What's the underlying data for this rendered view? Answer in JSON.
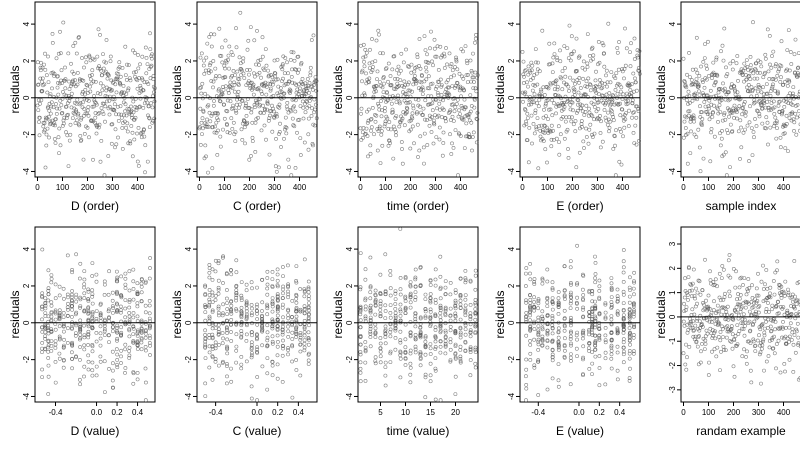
{
  "chart_data": [
    {
      "type": "scatter",
      "xlabel": "D (order)",
      "ylabel": "residuals",
      "xticks": [
        "0",
        "100",
        "200",
        "300",
        "400"
      ],
      "yticks": [
        "-4",
        "-2",
        "0",
        "2",
        "4"
      ],
      "xlim": [
        -10,
        470
      ],
      "ylim": [
        -4.3,
        5.2
      ],
      "n_points": 470,
      "y_spread": 1.5,
      "mode": "order",
      "seed": 11
    },
    {
      "type": "scatter",
      "xlabel": "C (order)",
      "ylabel": "residuals",
      "xticks": [
        "0",
        "100",
        "200",
        "300",
        "400"
      ],
      "yticks": [
        "-4",
        "-2",
        "0",
        "2",
        "4"
      ],
      "xlim": [
        -10,
        470
      ],
      "ylim": [
        -4.3,
        5.2
      ],
      "n_points": 470,
      "y_spread": 1.5,
      "mode": "order",
      "seed": 23
    },
    {
      "type": "scatter",
      "xlabel": "time (order)",
      "ylabel": "residuals",
      "xticks": [
        "0",
        "100",
        "200",
        "300",
        "400"
      ],
      "yticks": [
        "-4",
        "-2",
        "0",
        "2",
        "4"
      ],
      "xlim": [
        -10,
        470
      ],
      "ylim": [
        -4.3,
        5.2
      ],
      "n_points": 470,
      "y_spread": 1.5,
      "mode": "order",
      "seed": 37
    },
    {
      "type": "scatter",
      "xlabel": "E (order)",
      "ylabel": "residuals",
      "xticks": [
        "0",
        "100",
        "200",
        "300",
        "400"
      ],
      "yticks": [
        "-4",
        "-2",
        "0",
        "2",
        "4"
      ],
      "xlim": [
        -10,
        470
      ],
      "ylim": [
        -4.3,
        5.2
      ],
      "n_points": 470,
      "y_spread": 1.5,
      "mode": "order",
      "seed": 41
    },
    {
      "type": "scatter",
      "xlabel": "sample index",
      "ylabel": "residuals",
      "xticks": [
        "0",
        "100",
        "200",
        "300",
        "400"
      ],
      "yticks": [
        "-4",
        "-2",
        "0",
        "2",
        "4"
      ],
      "xlim": [
        -10,
        470
      ],
      "ylim": [
        -4.3,
        5.2
      ],
      "n_points": 470,
      "y_spread": 1.5,
      "mode": "order",
      "seed": 53
    },
    {
      "type": "scatter",
      "xlabel": "D (value)",
      "ylabel": "residuals",
      "xticks": [
        "-0.4",
        "0.0",
        "0.2",
        "0.4"
      ],
      "yticks": [
        "-4",
        "-2",
        "0",
        "2",
        "4"
      ],
      "xlim": [
        -0.6,
        0.57
      ],
      "ylim": [
        -4.3,
        5.2
      ],
      "n_points": 470,
      "y_spread": 1.5,
      "mode": "value",
      "x_values": [
        -0.53,
        -0.5,
        -0.47,
        -0.44,
        -0.4,
        -0.36,
        -0.32,
        -0.28,
        -0.24,
        -0.2,
        -0.16,
        -0.12,
        -0.08,
        -0.04,
        0.0,
        0.04,
        0.08,
        0.12,
        0.16,
        0.2,
        0.24,
        0.28,
        0.32,
        0.36,
        0.4,
        0.44,
        0.48,
        0.52
      ],
      "seed": 61
    },
    {
      "type": "scatter",
      "xlabel": "C (value)",
      "ylabel": "residuals",
      "xticks": [
        "-0.4",
        "0.0",
        "0.2",
        "0.4"
      ],
      "yticks": [
        "-4",
        "-2",
        "0",
        "2",
        "4"
      ],
      "xlim": [
        -0.58,
        0.58
      ],
      "ylim": [
        -4.3,
        5.2
      ],
      "n_points": 470,
      "y_spread": 1.5,
      "mode": "value",
      "x_values": [
        -0.5,
        -0.46,
        -0.43,
        -0.4,
        -0.37,
        -0.33,
        -0.29,
        -0.25,
        -0.2,
        -0.15,
        -0.1,
        -0.05,
        0.0,
        0.05,
        0.1,
        0.15,
        0.2,
        0.25,
        0.3,
        0.34,
        0.38,
        0.42,
        0.46,
        0.5
      ],
      "seed": 71
    },
    {
      "type": "scatter",
      "xlabel": "time (value)",
      "ylabel": "residuals",
      "xticks": [
        "5",
        "10",
        "15",
        "20"
      ],
      "yticks": [
        "-4",
        "-2",
        "0",
        "2",
        "4"
      ],
      "xlim": [
        0.5,
        24.5
      ],
      "ylim": [
        -4.3,
        5.2
      ],
      "n_points": 470,
      "y_spread": 1.5,
      "mode": "value",
      "x_values": [
        1,
        2,
        3,
        4,
        5,
        6,
        7,
        8,
        9,
        10,
        11,
        12,
        13,
        14,
        15,
        16,
        17,
        18,
        19,
        20,
        21,
        22,
        23,
        24
      ],
      "seed": 83
    },
    {
      "type": "scatter",
      "xlabel": "E (value)",
      "ylabel": "residuals",
      "xticks": [
        "-0.4",
        "0.0",
        "0.2",
        "0.4"
      ],
      "yticks": [
        "-4",
        "-2",
        "0",
        "2",
        "4"
      ],
      "xlim": [
        -0.58,
        0.6
      ],
      "ylim": [
        -4.3,
        5.2
      ],
      "n_points": 470,
      "y_spread": 1.5,
      "mode": "value",
      "x_values": [
        -0.52,
        -0.48,
        -0.44,
        -0.4,
        -0.36,
        -0.31,
        -0.26,
        -0.2,
        -0.14,
        -0.08,
        -0.02,
        0.04,
        0.1,
        0.13,
        0.16,
        0.2,
        0.26,
        0.32,
        0.38,
        0.44,
        0.5,
        0.54
      ],
      "seed": 97
    },
    {
      "type": "scatter",
      "xlabel": "randam example",
      "ylabel": "residuals",
      "xticks": [
        "0",
        "100",
        "200",
        "300",
        "400"
      ],
      "yticks": [
        "-3",
        "-2",
        "-1",
        "0",
        "1",
        "2",
        "3"
      ],
      "xlim": [
        -10,
        470
      ],
      "ylim": [
        -3.5,
        3.7
      ],
      "n_points": 470,
      "y_spread": 1.0,
      "mode": "order",
      "seed": 101
    }
  ]
}
